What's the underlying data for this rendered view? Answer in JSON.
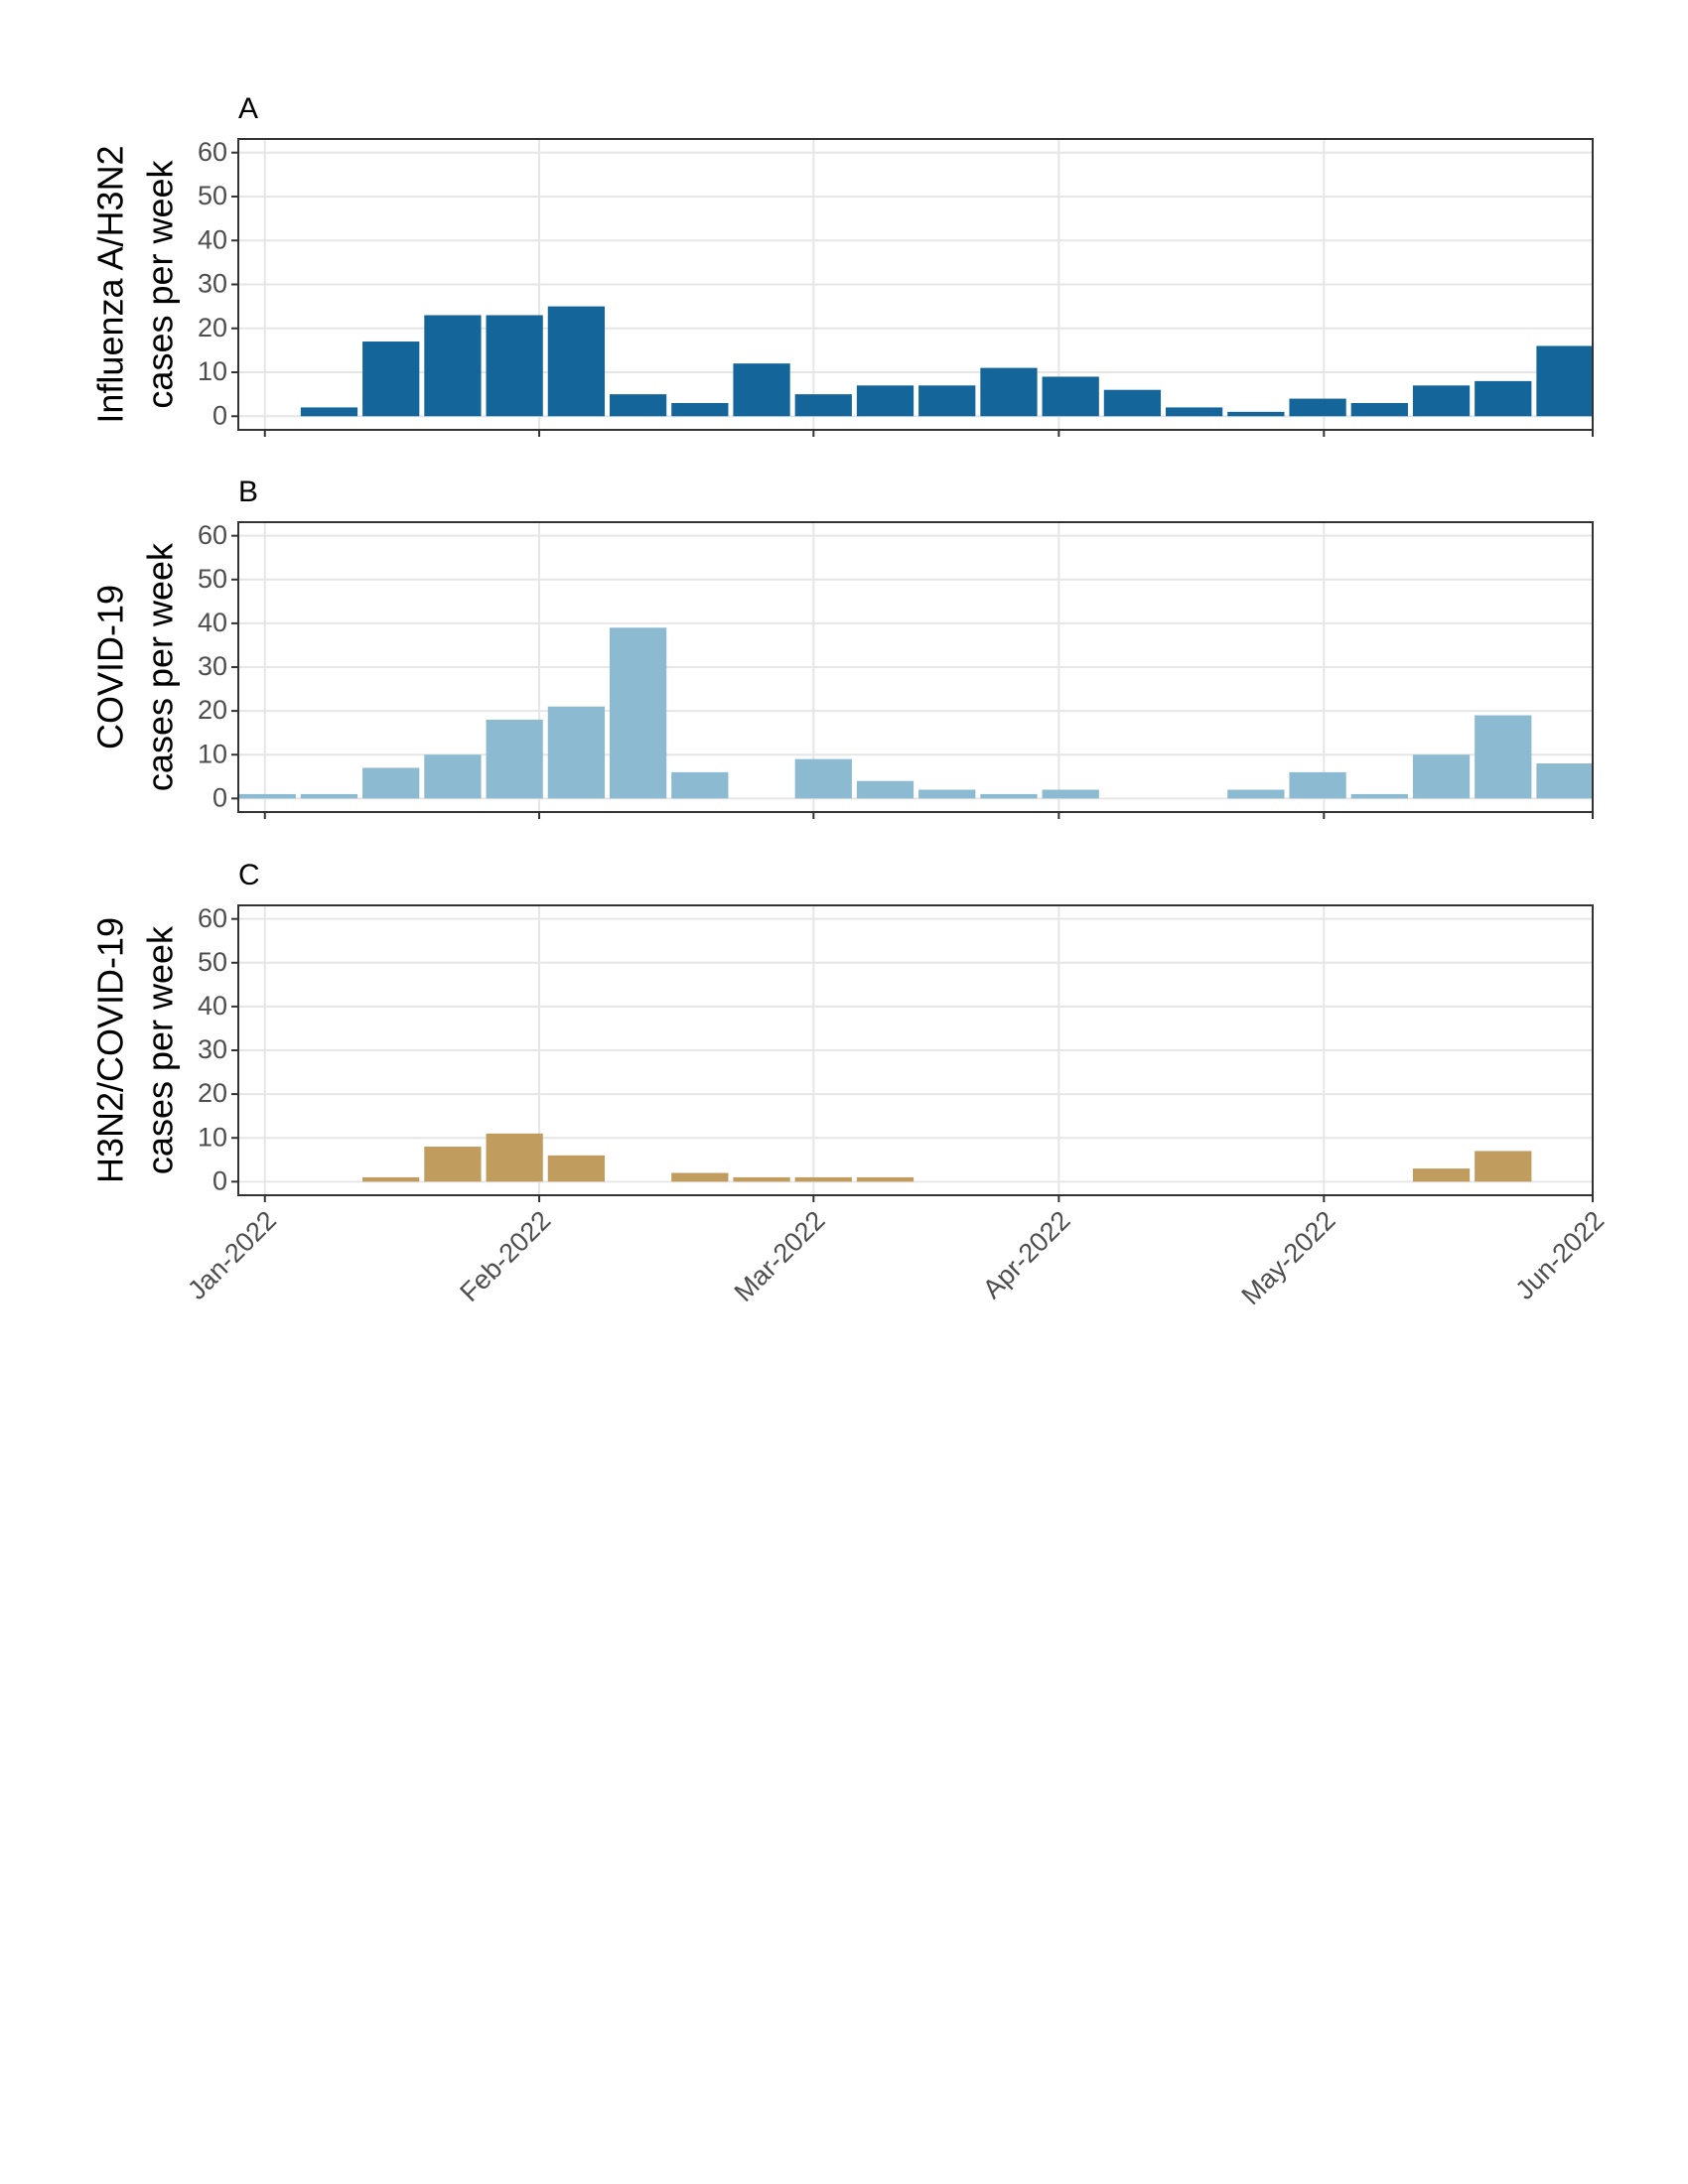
{
  "chart_data": [
    {
      "type": "bar",
      "panel_label": "A",
      "y_label": [
        "Influenza A/H3N2",
        "cases per week"
      ],
      "color": "#13659a",
      "categories": [
        null,
        null,
        null,
        null,
        null,
        null,
        null,
        null,
        null,
        null,
        null,
        null,
        null,
        null,
        null,
        null,
        null,
        null,
        null,
        null,
        null,
        null
      ],
      "values": [
        0,
        2,
        17,
        23,
        23,
        25,
        5,
        3,
        12,
        5,
        7,
        7,
        11,
        9,
        6,
        2,
        1,
        4,
        3,
        7,
        8,
        16
      ],
      "xlim": [
        -0.47,
        21.45
      ],
      "ylim": [
        -3.1,
        63.1
      ],
      "yticks": [
        0,
        10,
        20,
        30,
        40,
        50,
        60
      ],
      "grid": true
    },
    {
      "type": "bar",
      "panel_label": "B",
      "y_label": [
        "COVID-19",
        "cases per week"
      ],
      "color": "#8cbad0",
      "categories": [
        null,
        null,
        null,
        null,
        null,
        null,
        null,
        null,
        null,
        null,
        null,
        null,
        null,
        null,
        null,
        null,
        null,
        null,
        null,
        null,
        null,
        null
      ],
      "values": [
        1,
        1,
        7,
        10,
        18,
        21,
        39,
        6,
        0,
        9,
        4,
        2,
        1,
        2,
        0,
        0,
        2,
        6,
        1,
        10,
        19,
        8
      ],
      "xlim": [
        -0.47,
        21.45
      ],
      "ylim": [
        -3.1,
        63.1
      ],
      "yticks": [
        0,
        10,
        20,
        30,
        40,
        50,
        60
      ],
      "grid": true
    },
    {
      "type": "bar",
      "panel_label": "C",
      "y_label": [
        "H3N2/COVID-19",
        "cases per week"
      ],
      "color": "#c09c5e",
      "categories": [
        null,
        null,
        null,
        null,
        null,
        null,
        null,
        null,
        null,
        null,
        null,
        null,
        null,
        null,
        null,
        null,
        null,
        null,
        null,
        null,
        null,
        null
      ],
      "values": [
        0,
        0,
        1,
        8,
        11,
        6,
        0,
        2,
        1,
        1,
        1,
        0,
        0,
        0,
        0,
        0,
        0,
        0,
        0,
        3,
        7,
        0
      ],
      "xlim": [
        -0.47,
        21.45
      ],
      "ylim": [
        -3.1,
        63.1
      ],
      "yticks": [
        0,
        10,
        20,
        30,
        40,
        50,
        60
      ],
      "grid": true,
      "xticks": [
        {
          "value": -0.04,
          "label": "Jan-2022"
        },
        {
          "value": 4.4,
          "label": "Feb-2022"
        },
        {
          "value": 8.84,
          "label": "Mar-2022"
        },
        {
          "value": 12.81,
          "label": "Apr-2022"
        },
        {
          "value": 17.1,
          "label": "May-2022"
        },
        {
          "value": 21.45,
          "label": "Jun-2022"
        }
      ]
    }
  ]
}
